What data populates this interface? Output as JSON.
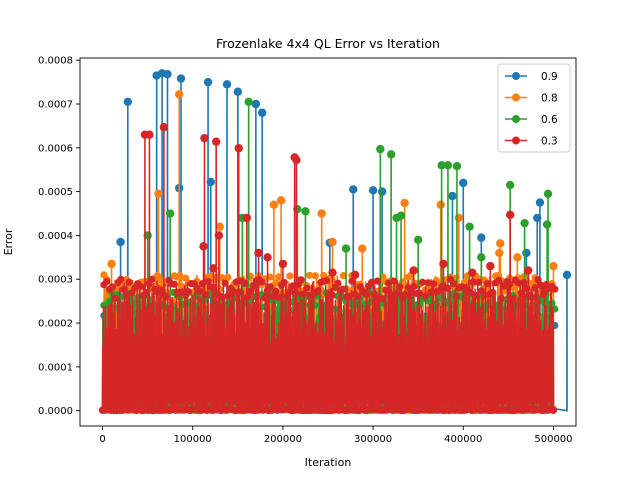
{
  "chart_data": {
    "type": "line",
    "title": "Frozenlake 4x4 QL Error vs Iteration",
    "xlabel": "Iteration",
    "ylabel": "Error",
    "xlim": [
      -25000,
      525000
    ],
    "ylim": [
      -3.5e-05,
      0.000805
    ],
    "xticks": [
      0,
      100000,
      200000,
      300000,
      400000,
      500000
    ],
    "xtick_labels": [
      "0",
      "100000",
      "200000",
      "300000",
      "400000",
      "500000"
    ],
    "yticks": [
      0.0,
      0.0001,
      0.0002,
      0.0003,
      0.0004,
      0.0005,
      0.0006,
      0.0007,
      0.0008
    ],
    "ytick_labels": [
      "0.0000",
      "0.0001",
      "0.0002",
      "0.0003",
      "0.0004",
      "0.0005",
      "0.0006",
      "0.0007",
      "0.0008"
    ],
    "grid": false,
    "legend_position": "top-right",
    "marker": "circle",
    "series": [
      {
        "name": "0.9",
        "color": "#1f77b4",
        "peaks": [
          {
            "x": 28000,
            "y": 0.000705
          },
          {
            "x": 60000,
            "y": 0.000765
          },
          {
            "x": 66000,
            "y": 0.00077
          },
          {
            "x": 72000,
            "y": 0.000768
          },
          {
            "x": 87000,
            "y": 0.000758
          },
          {
            "x": 117000,
            "y": 0.00075
          },
          {
            "x": 138000,
            "y": 0.000745
          },
          {
            "x": 150000,
            "y": 0.000728
          },
          {
            "x": 170000,
            "y": 0.0007
          },
          {
            "x": 177000,
            "y": 0.00068
          },
          {
            "x": 120000,
            "y": 0.000522
          },
          {
            "x": 85000,
            "y": 0.000508
          },
          {
            "x": 278000,
            "y": 0.000505
          },
          {
            "x": 300000,
            "y": 0.000503
          },
          {
            "x": 310000,
            "y": 0.0005
          },
          {
            "x": 400000,
            "y": 0.00052
          },
          {
            "x": 388000,
            "y": 0.00049
          },
          {
            "x": 485000,
            "y": 0.000475
          },
          {
            "x": 482000,
            "y": 0.00044
          },
          {
            "x": 20000,
            "y": 0.000385
          },
          {
            "x": 252000,
            "y": 0.000383
          },
          {
            "x": 420000,
            "y": 0.000395
          },
          {
            "x": 470000,
            "y": 0.00036
          },
          {
            "x": 515000,
            "y": 0.00031
          }
        ],
        "base_envelope": 0.00022,
        "seed": 11
      },
      {
        "name": "0.8",
        "color": "#ff7f0e",
        "peaks": [
          {
            "x": 85000,
            "y": 0.000722
          },
          {
            "x": 62000,
            "y": 0.000495
          },
          {
            "x": 198000,
            "y": 0.00048
          },
          {
            "x": 190000,
            "y": 0.00047
          },
          {
            "x": 335000,
            "y": 0.000474
          },
          {
            "x": 375000,
            "y": 0.00047
          },
          {
            "x": 395000,
            "y": 0.00044
          },
          {
            "x": 243000,
            "y": 0.00045
          },
          {
            "x": 130000,
            "y": 0.00042
          },
          {
            "x": 255000,
            "y": 0.000385
          },
          {
            "x": 288000,
            "y": 0.00037
          },
          {
            "x": 440000,
            "y": 0.00036
          },
          {
            "x": 441000,
            "y": 0.000382
          },
          {
            "x": 460000,
            "y": 0.00035
          },
          {
            "x": 10000,
            "y": 0.000335
          },
          {
            "x": 500000,
            "y": 0.00033
          }
        ],
        "base_envelope": 0.00031,
        "seed": 23
      },
      {
        "name": "0.6",
        "color": "#2ca02c",
        "peaks": [
          {
            "x": 162000,
            "y": 0.000705
          },
          {
            "x": 308000,
            "y": 0.000597
          },
          {
            "x": 320000,
            "y": 0.000585
          },
          {
            "x": 376000,
            "y": 0.00056
          },
          {
            "x": 383000,
            "y": 0.00056
          },
          {
            "x": 393000,
            "y": 0.000558
          },
          {
            "x": 452000,
            "y": 0.000515
          },
          {
            "x": 494000,
            "y": 0.000495
          },
          {
            "x": 75000,
            "y": 0.00045
          },
          {
            "x": 155000,
            "y": 0.00044
          },
          {
            "x": 216000,
            "y": 0.00046
          },
          {
            "x": 225000,
            "y": 0.000455
          },
          {
            "x": 326000,
            "y": 0.00044
          },
          {
            "x": 331000,
            "y": 0.000445
          },
          {
            "x": 407000,
            "y": 0.00042
          },
          {
            "x": 468000,
            "y": 0.000428
          },
          {
            "x": 493000,
            "y": 0.000425
          },
          {
            "x": 50000,
            "y": 0.0004
          },
          {
            "x": 270000,
            "y": 0.00037
          },
          {
            "x": 350000,
            "y": 0.00039
          },
          {
            "x": 420000,
            "y": 0.00035
          }
        ],
        "base_envelope": 0.00027,
        "seed": 37
      },
      {
        "name": "0.3",
        "color": "#d62728",
        "peaks": [
          {
            "x": 47000,
            "y": 0.00063
          },
          {
            "x": 52000,
            "y": 0.00063
          },
          {
            "x": 68000,
            "y": 0.000647
          },
          {
            "x": 113000,
            "y": 0.000622
          },
          {
            "x": 126000,
            "y": 0.000614
          },
          {
            "x": 151000,
            "y": 0.000599
          },
          {
            "x": 213000,
            "y": 0.000578
          },
          {
            "x": 215000,
            "y": 0.000572
          },
          {
            "x": 112000,
            "y": 0.000375
          },
          {
            "x": 123000,
            "y": 0.000325
          },
          {
            "x": 129000,
            "y": 0.0004
          },
          {
            "x": 160000,
            "y": 0.00044
          },
          {
            "x": 173000,
            "y": 0.00036
          },
          {
            "x": 183000,
            "y": 0.00035
          },
          {
            "x": 200000,
            "y": 0.000335
          },
          {
            "x": 255000,
            "y": 0.000315
          },
          {
            "x": 280000,
            "y": 0.00031
          },
          {
            "x": 345000,
            "y": 0.00032
          },
          {
            "x": 378000,
            "y": 0.000335
          },
          {
            "x": 410000,
            "y": 0.000315
          },
          {
            "x": 430000,
            "y": 0.00033
          },
          {
            "x": 452000,
            "y": 0.000447
          },
          {
            "x": 472000,
            "y": 0.00032
          },
          {
            "x": 490000,
            "y": 0.000275
          }
        ],
        "base_envelope": 0.0003,
        "seed": 53
      }
    ]
  }
}
